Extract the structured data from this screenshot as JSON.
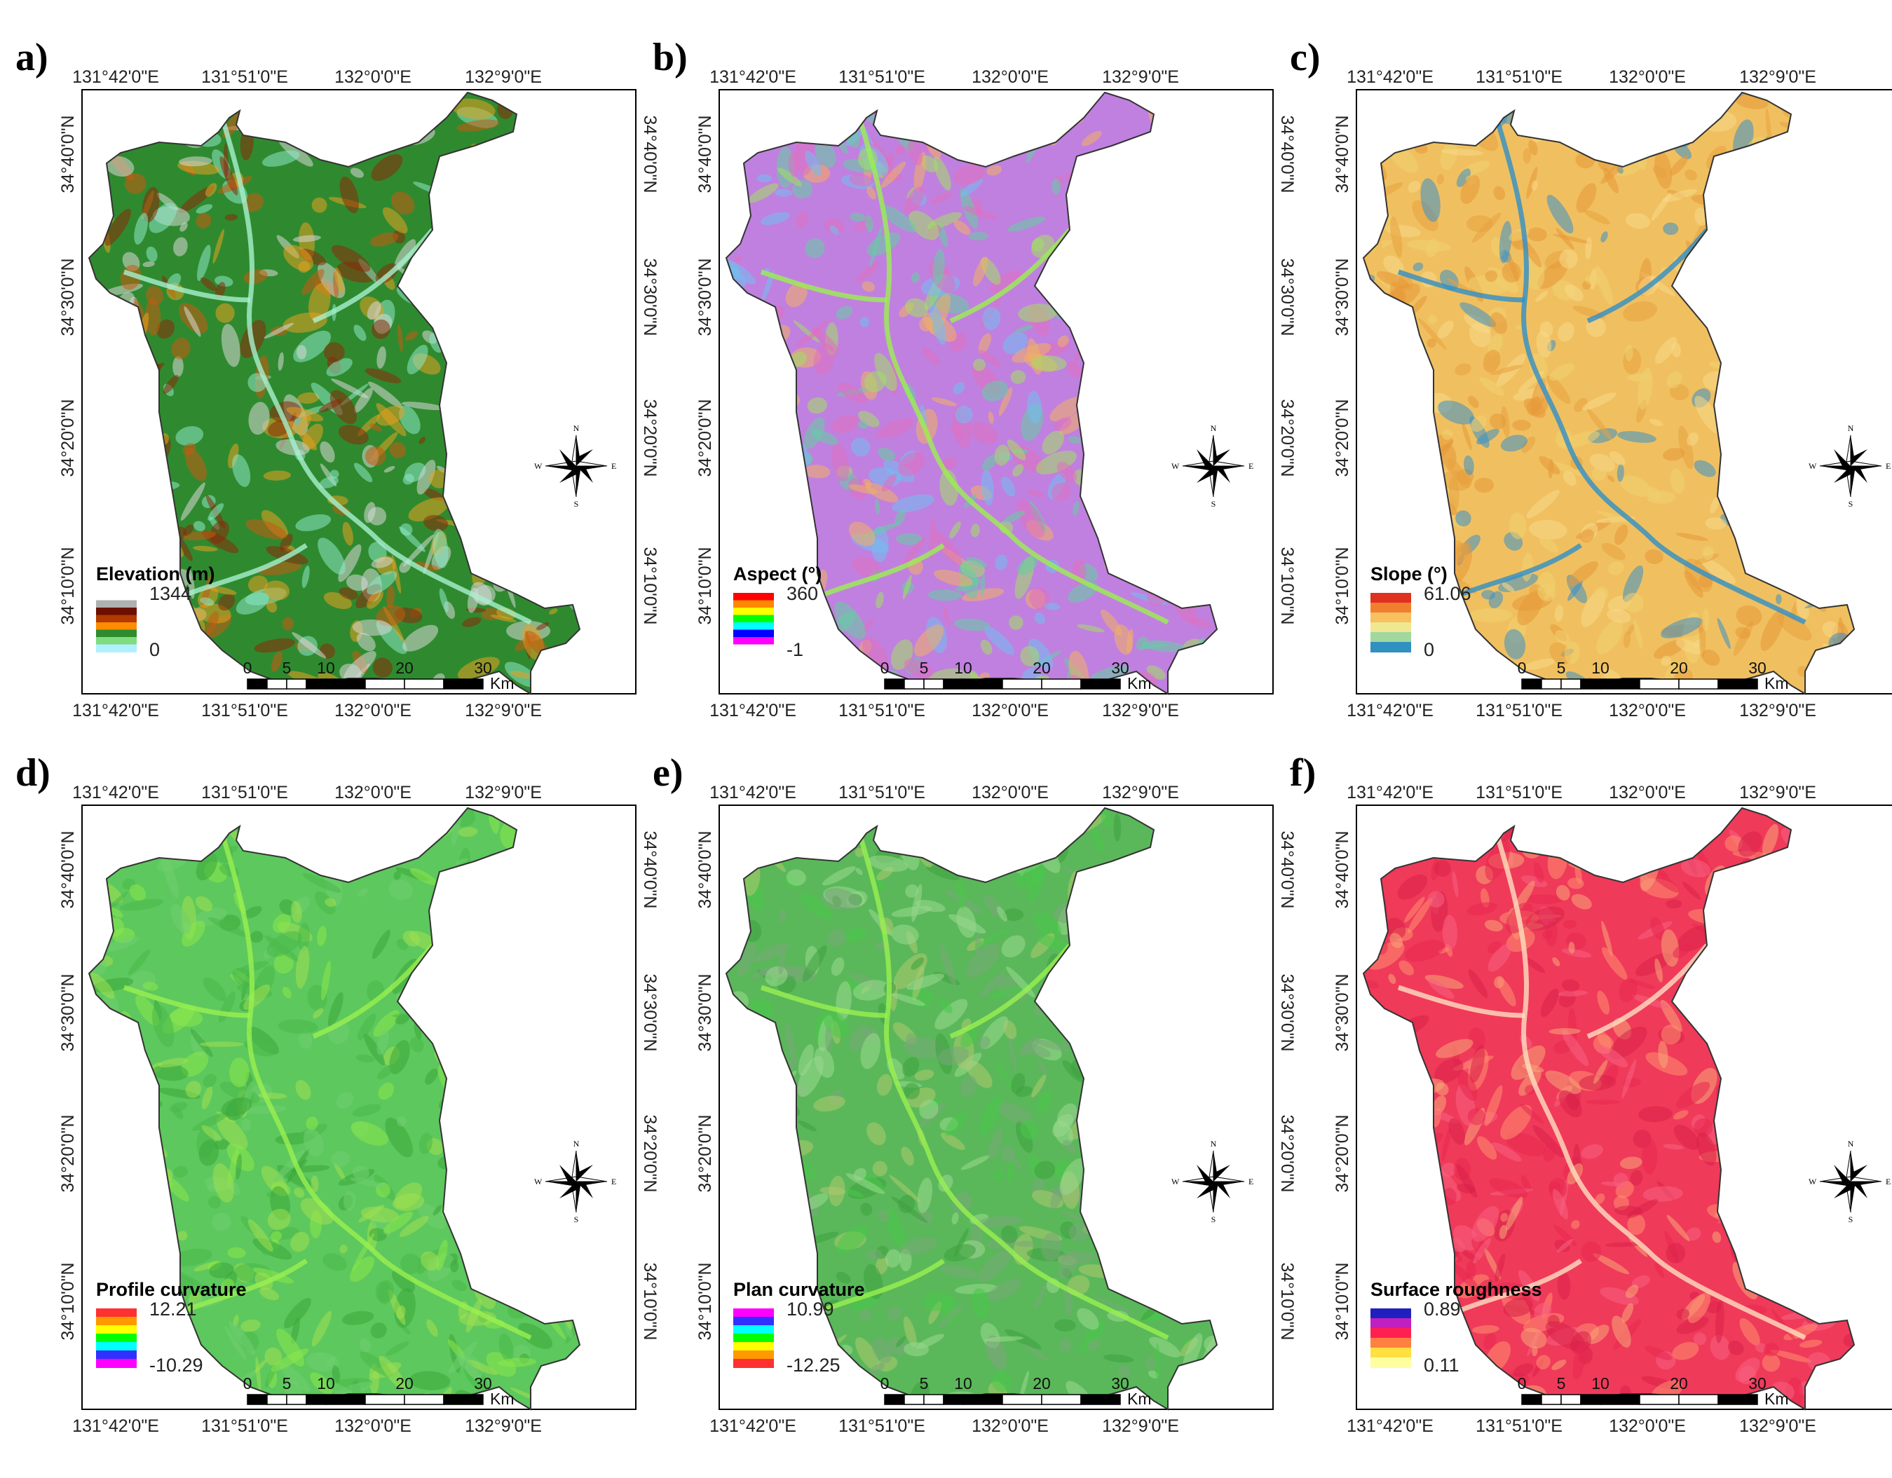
{
  "lon_labels": [
    "131°42'0\"E",
    "131°51'0\"E",
    "132°0'0\"E",
    "132°9'0\"E"
  ],
  "lat_labels": [
    "34°40'0\"N",
    "34°30'0\"N",
    "34°20'0\"N",
    "34°10'0\"N"
  ],
  "compass": {
    "n": "N",
    "s": "S",
    "e": "E",
    "w": "W"
  },
  "scalebar": {
    "ticks": [
      "0",
      "5",
      "10",
      "20",
      "30"
    ],
    "unit": "Km"
  },
  "panels": [
    {
      "label": "a)",
      "legend_title": "Elevation (m)",
      "max": "1344",
      "min": "0",
      "colors": [
        "#ffffff",
        "#b0b0b0",
        "#6b0f00",
        "#b33a00",
        "#ff8c00",
        "#2e8b2e",
        "#7fdc7f",
        "#b0f0ff"
      ],
      "map_colors": [
        "#2f8a2f",
        "#8a2a0a",
        "#c85a10",
        "#d8d8d8",
        "#8de8c8",
        "#e8a020"
      ]
    },
    {
      "label": "b)",
      "legend_title": "Aspect (°)",
      "max": "360",
      "min": "-1",
      "colors": [
        "#ff0000",
        "#ff8800",
        "#ffff00",
        "#00ff00",
        "#00ffff",
        "#0000ff",
        "#ff00ff",
        "#ffffff"
      ],
      "map_colors": [
        "#c080e0",
        "#70c0f0",
        "#a0e060",
        "#e070c0",
        "#f0b060",
        "#60d0a0"
      ]
    },
    {
      "label": "c)",
      "legend_title": "Slope (°)",
      "max": "61.06",
      "min": "0",
      "colors": [
        "#e03020",
        "#f08030",
        "#f8c060",
        "#f0e890",
        "#a0d8a0",
        "#3090c0"
      ],
      "map_colors": [
        "#f0c060",
        "#e8a040",
        "#f0d070",
        "#3a90c8",
        "#e89838",
        "#f8d888"
      ]
    },
    {
      "label": "d)",
      "legend_title": "Profile curvature",
      "max": "12.21",
      "min": "-10.29",
      "colors": [
        "#ff3030",
        "#ff9900",
        "#ffff00",
        "#00ff00",
        "#00ffff",
        "#3030ff",
        "#ff00ff"
      ],
      "map_colors": [
        "#5dc85d",
        "#48b848",
        "#8ae84a",
        "#70d070",
        "#3aa83a",
        "#a0e050"
      ]
    },
    {
      "label": "e)",
      "legend_title": "Plan curvature",
      "max": "10.99",
      "min": "-12.25",
      "colors": [
        "#ff00ff",
        "#3030ff",
        "#00ffff",
        "#00ff00",
        "#ffff00",
        "#ff9900",
        "#ff3030"
      ],
      "map_colors": [
        "#5ab85a",
        "#78a878",
        "#48c848",
        "#9ad890",
        "#3ea03e",
        "#b0c870"
      ]
    },
    {
      "label": "f)",
      "legend_title": "Surface roughness",
      "max": "0.89",
      "min": "0.11",
      "colors": [
        "#2020c0",
        "#c020c0",
        "#ff2050",
        "#ff8040",
        "#ffe040",
        "#ffffa0"
      ],
      "map_colors": [
        "#f03a5a",
        "#e82850",
        "#f86080",
        "#ff9070",
        "#d82048",
        "#f8a878"
      ]
    }
  ]
}
